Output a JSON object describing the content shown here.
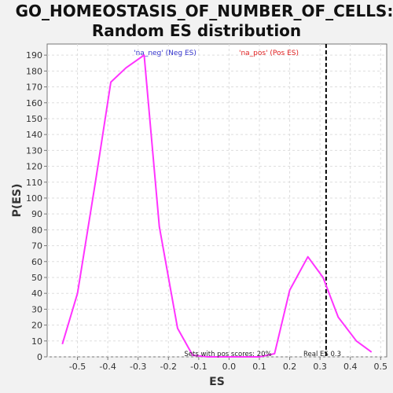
{
  "chart_data": {
    "type": "line",
    "title_lines": [
      "GO_HOMEOSTASIS_OF_NUMBER_OF_CELLS:",
      "Random ES distribution"
    ],
    "xlabel": "ES",
    "ylabel": "P(ES)",
    "xlim": [
      -0.6,
      0.52
    ],
    "ylim": [
      0,
      197
    ],
    "xticks": [
      -0.5,
      -0.4,
      -0.3,
      -0.2,
      -0.1,
      0.0,
      0.1,
      0.2,
      0.3,
      0.4,
      0.5
    ],
    "xtick_labels": [
      "-0.5",
      "-0.4",
      "-0.3",
      "-0.2",
      "-0.1",
      "0.0",
      "0.1",
      "0.2",
      "0.3",
      "0.4",
      "0.5"
    ],
    "yticks": [
      0,
      10,
      20,
      30,
      40,
      50,
      60,
      70,
      80,
      90,
      100,
      110,
      120,
      130,
      140,
      150,
      160,
      170,
      180,
      190
    ],
    "grid": true,
    "series": [
      {
        "color": "#ff33ff",
        "x": [
          -0.55,
          -0.5,
          -0.44,
          -0.39,
          -0.34,
          -0.28,
          -0.23,
          -0.17,
          -0.12,
          -0.07,
          -0.01,
          0.04,
          0.1,
          0.15,
          0.2,
          0.26,
          0.31,
          0.36,
          0.42,
          0.47
        ],
        "y": [
          8,
          40,
          111,
          173,
          182,
          190,
          82,
          18,
          1,
          0,
          0,
          0,
          0,
          2,
          42,
          63,
          50,
          25,
          10,
          3
        ]
      }
    ],
    "legend": [
      {
        "label": "'na_neg' (Neg ES)",
        "color": "#3333cc"
      },
      {
        "label": "'na_pos' (Pos ES)",
        "color": "#e02020"
      }
    ],
    "legend_placement": "top",
    "real_es_line": {
      "x": 0.32,
      "style": "dashed",
      "color": "#000000"
    },
    "annotations": {
      "pos_scores": "Sets with pos scores: 20%",
      "real_es": "Real ES 0.3"
    }
  }
}
